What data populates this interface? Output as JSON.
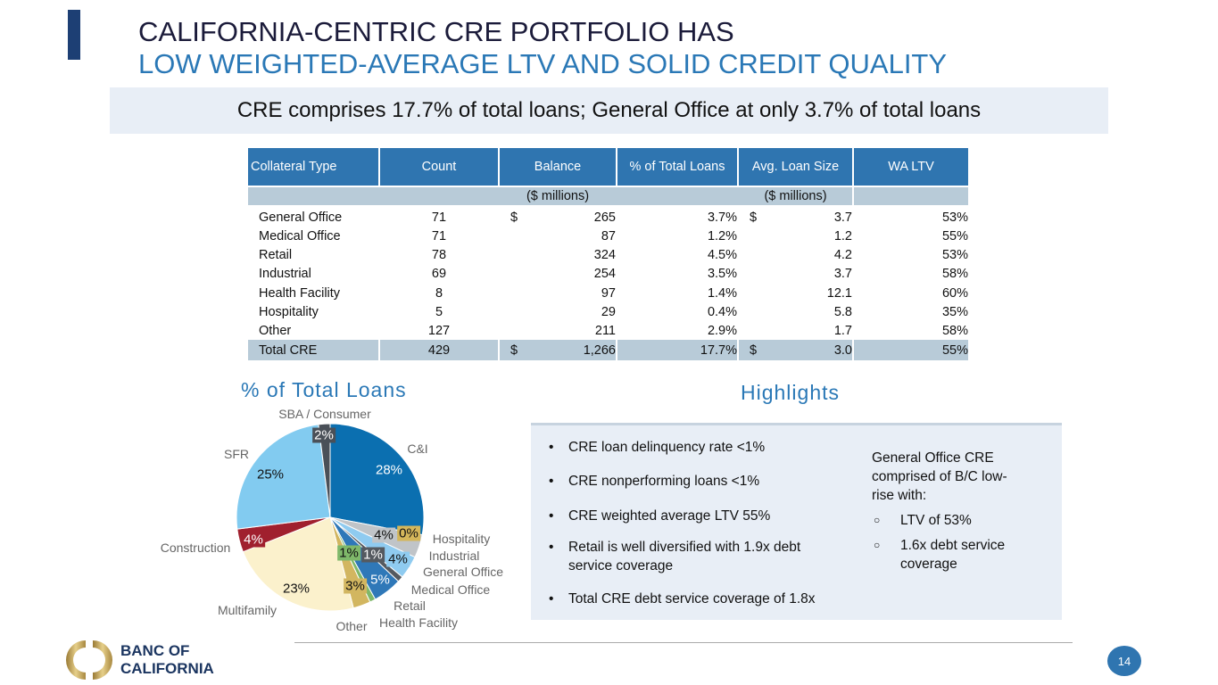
{
  "header": {
    "title_line1": "CALIFORNIA-CENTRIC CRE PORTFOLIO HAS",
    "title_line2": "LOW WEIGHTED-AVERAGE LTV AND SOLID CREDIT QUALITY",
    "banner": "CRE comprises 17.7% of total loans; General Office at only 3.7% of total loans"
  },
  "table": {
    "headers": [
      "Collateral Type",
      "Count",
      "Balance",
      "% of Total Loans",
      "Avg. Loan Size",
      "WA LTV"
    ],
    "sub_balance": "($ millions)",
    "sub_avg": "($ millions)",
    "rows": [
      {
        "type": "General Office",
        "count": "71",
        "bal_sym": "$",
        "balance": "265",
        "pct": "3.7%",
        "avg_sym": "$",
        "avg": "3.7",
        "ltv": "53%"
      },
      {
        "type": "Medical Office",
        "count": "71",
        "bal_sym": "",
        "balance": "87",
        "pct": "1.2%",
        "avg_sym": "",
        "avg": "1.2",
        "ltv": "55%"
      },
      {
        "type": "Retail",
        "count": "78",
        "bal_sym": "",
        "balance": "324",
        "pct": "4.5%",
        "avg_sym": "",
        "avg": "4.2",
        "ltv": "53%"
      },
      {
        "type": "Industrial",
        "count": "69",
        "bal_sym": "",
        "balance": "254",
        "pct": "3.5%",
        "avg_sym": "",
        "avg": "3.7",
        "ltv": "58%"
      },
      {
        "type": "Health Facility",
        "count": "8",
        "bal_sym": "",
        "balance": "97",
        "pct": "1.4%",
        "avg_sym": "",
        "avg": "12.1",
        "ltv": "60%"
      },
      {
        "type": "Hospitality",
        "count": "5",
        "bal_sym": "",
        "balance": "29",
        "pct": "0.4%",
        "avg_sym": "",
        "avg": "5.8",
        "ltv": "35%"
      },
      {
        "type": "Other",
        "count": "127",
        "bal_sym": "",
        "balance": "211",
        "pct": "2.9%",
        "avg_sym": "",
        "avg": "1.7",
        "ltv": "58%"
      }
    ],
    "total": {
      "type": "Total CRE",
      "count": "429",
      "bal_sym": "$",
      "balance": "1,266",
      "pct": "17.7%",
      "avg_sym": "$",
      "avg": "3.0",
      "ltv": "55%"
    }
  },
  "chart_data": {
    "type": "pie",
    "title": "% of Total Loans",
    "slices": [
      {
        "name": "C&I",
        "value": 28,
        "label": "28%",
        "color": "#0b6fb0"
      },
      {
        "name": "Hospitality",
        "value": 0,
        "label": "0%",
        "color": "#d4b65a"
      },
      {
        "name": "Industrial",
        "value": 4,
        "label": "4%",
        "color": "#c0c4c8"
      },
      {
        "name": "General Office",
        "value": 4,
        "label": "4%",
        "color": "#8fcbf0"
      },
      {
        "name": "Medical Office",
        "value": 1,
        "label": "1%",
        "color": "#555a60"
      },
      {
        "name": "Retail",
        "value": 5,
        "label": "5%",
        "color": "#2f78b8"
      },
      {
        "name": "Health Facility",
        "value": 1,
        "label": "1%",
        "color": "#7fb86a"
      },
      {
        "name": "Other",
        "value": 3,
        "label": "3%",
        "color": "#d2b660"
      },
      {
        "name": "Multifamily",
        "value": 23,
        "label": "23%",
        "color": "#fbf1cc"
      },
      {
        "name": "Construction",
        "value": 4,
        "label": "4%",
        "color": "#a0202e"
      },
      {
        "name": "SFR",
        "value": 25,
        "label": "25%",
        "color": "#82cbf0"
      },
      {
        "name": "SBA / Consumer",
        "value": 2,
        "label": "2%",
        "color": "#4a5058"
      }
    ]
  },
  "highlights": {
    "title": "Highlights",
    "bullets": [
      "CRE loan delinquency rate <1%",
      "CRE nonperforming loans <1%",
      "CRE weighted average LTV 55%",
      "Retail is well diversified with 1.9x debt service coverage",
      "Total CRE debt service coverage of 1.8x"
    ],
    "side_text": "General Office CRE comprised of B/C low-rise with:",
    "side_items": [
      "LTV of 53%",
      "1.6x debt service coverage"
    ]
  },
  "footer": {
    "logo_line1": "BANC OF",
    "logo_line2": "CALIFORNIA",
    "page": "14"
  }
}
